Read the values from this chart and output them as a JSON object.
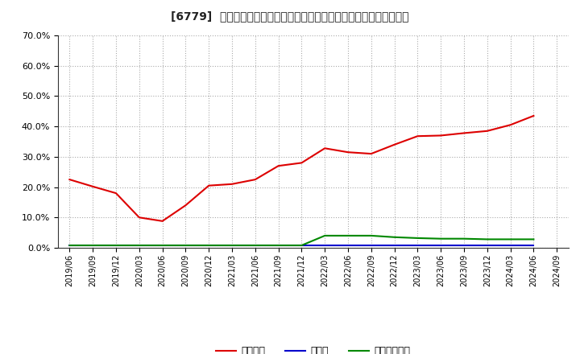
{
  "title": "[6779]  自己資本、のれん、繰延税金資産の総資産に対する比率の推移",
  "x_labels": [
    "2019/06",
    "2019/09",
    "2019/12",
    "2020/03",
    "2020/06",
    "2020/09",
    "2020/12",
    "2021/03",
    "2021/06",
    "2021/09",
    "2021/12",
    "2022/03",
    "2022/06",
    "2022/09",
    "2022/12",
    "2023/03",
    "2023/06",
    "2023/09",
    "2023/12",
    "2024/03",
    "2024/06",
    "2024/09"
  ],
  "jikoshihon": [
    22.5,
    20.2,
    18.0,
    10.0,
    8.8,
    14.0,
    20.5,
    21.0,
    22.5,
    27.0,
    28.0,
    32.8,
    31.5,
    31.0,
    34.0,
    36.8,
    37.0,
    37.8,
    38.5,
    40.5,
    43.5,
    null
  ],
  "noren": [
    0.8,
    0.8,
    0.8,
    0.8,
    0.8,
    0.8,
    0.8,
    0.8,
    0.8,
    0.8,
    0.8,
    0.8,
    0.8,
    0.8,
    0.8,
    0.8,
    0.8,
    0.8,
    0.8,
    0.8,
    0.8,
    null
  ],
  "kurinobeizei": [
    0.8,
    0.8,
    0.8,
    0.8,
    0.8,
    0.8,
    0.8,
    0.8,
    0.8,
    0.8,
    0.8,
    4.0,
    4.0,
    4.0,
    3.5,
    3.2,
    3.0,
    3.0,
    2.8,
    2.8,
    2.8,
    null
  ],
  "jikoshihon_color": "#dd0000",
  "noren_color": "#0000cc",
  "kurinobeizei_color": "#008800",
  "background_color": "#ffffff",
  "grid_color": "#aaaaaa",
  "legend_label_jiko": "自己資本",
  "legend_label_noren": "のれん",
  "legend_label_kuri": "繰延税金資産"
}
